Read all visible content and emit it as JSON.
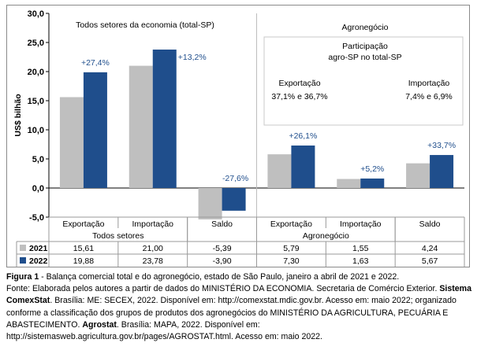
{
  "chart_data": {
    "type": "bar",
    "ylabel": "US$ bilhão",
    "ylim": [
      -5,
      30
    ],
    "yticks": [
      "30,0",
      "25,0",
      "20,0",
      "15,0",
      "10,0",
      "5,0",
      "0,0",
      "-5,0"
    ],
    "categories": [
      "Exportação",
      "Importação",
      "Saldo",
      "Exportação",
      "Importação",
      "Saldo"
    ],
    "groups": [
      {
        "label": "Todos setores",
        "panel_title": "Todos setores da economia (total-SP)"
      },
      {
        "label": "Agronegócio",
        "panel_title": "Agronegócio"
      }
    ],
    "series": [
      {
        "name": "2021",
        "color": "#bfbfbf",
        "values": [
          15.61,
          21.0,
          -5.39,
          5.79,
          1.55,
          4.24
        ],
        "display": [
          "15,61",
          "21,00",
          "-5,39",
          "5,79",
          "1,55",
          "4,24"
        ]
      },
      {
        "name": "2022",
        "color": "#1f4e8c",
        "values": [
          19.88,
          23.78,
          -3.9,
          7.3,
          1.63,
          5.67
        ],
        "display": [
          "19,88",
          "23,78",
          "-3,90",
          "7,30",
          "1,63",
          "5,67"
        ]
      }
    ],
    "change_labels": [
      "+27,4%",
      "+13,2%",
      "-27,6%",
      "+26,1%",
      "+5,2%",
      "+33,7%"
    ],
    "participation": {
      "title_line1": "Participação",
      "title_line2": "agro-SP no total-SP",
      "export_label": "Exportação",
      "export_value": "37,1% e 36,7%",
      "import_label": "Importação",
      "import_value": "7,4% e 6,9%"
    },
    "grid": false,
    "legend": "table-left"
  },
  "caption": {
    "figure_label": "Figura 1",
    "figure_text": " - Balança comercial total e do agronegócio, estado de São Paulo, janeiro a abril de 2021 e 2022.",
    "source_1": "Fonte: Elaborada pelos autores a partir de dados do MINISTÉRIO DA ECONOMIA. Secretaria de Comércio Exterior. ",
    "source_bold_1": "Sistema ComexStat",
    "source_2": ". Brasília: ME: SECEX, 2022. Disponível em: http://comexstat.mdic.gov.br. Acesso em: maio 2022; organizado conforme a classificação dos grupos de produtos dos agronegócios do MINISTÉRIO DA AGRICULTURA, PECUÁRIA E ABASTECIMENTO. ",
    "source_bold_2": "Agrostat",
    "source_3": ". Brasília: MAPA, 2022. Disponível em: http://sistemasweb.agricultura.gov.br/pages/AGROSTAT.html. Acesso em: maio 2022."
  }
}
